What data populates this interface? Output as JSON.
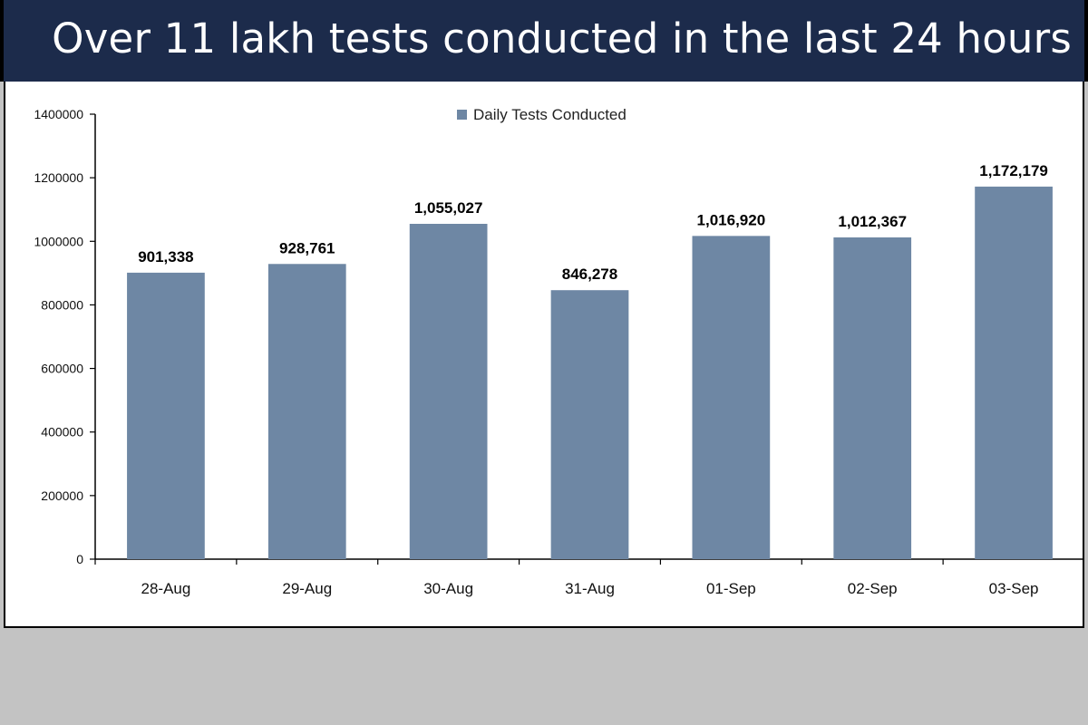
{
  "header": {
    "title": "Over 11 lakh tests conducted in the last 24 hours"
  },
  "colors": {
    "title_bar": "#1c2b4b",
    "bar": "#6e87a4",
    "page_bg": "#c3c3c3"
  },
  "chart_data": {
    "type": "bar",
    "categories": [
      "28-Aug",
      "29-Aug",
      "30-Aug",
      "31-Aug",
      "01-Sep",
      "02-Sep",
      "03-Sep"
    ],
    "series": [
      {
        "name": "Daily Tests Conducted",
        "values": [
          901338,
          928761,
          1055027,
          846278,
          1016920,
          1012367,
          1172179
        ]
      }
    ],
    "data_labels": [
      "901,338",
      "928,761",
      "1,055,027",
      "846,278",
      "1,016,920",
      "1,012,367",
      "1,172,179"
    ],
    "y_ticks": [
      0,
      200000,
      400000,
      600000,
      800000,
      1000000,
      1200000,
      1400000
    ],
    "ylim": [
      0,
      1400000
    ],
    "legend_position": "top-center",
    "grid": false
  }
}
